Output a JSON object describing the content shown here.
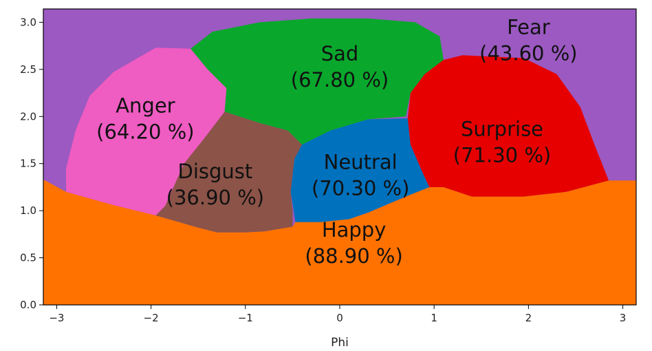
{
  "chart_data": {
    "type": "region-map",
    "title": "",
    "xlabel": "Phi",
    "ylabel": "",
    "xlim": [
      -3.14159,
      3.14159
    ],
    "ylim": [
      0,
      3.14159
    ],
    "xticks": [
      -3,
      -2,
      -1,
      0,
      1,
      2,
      3
    ],
    "xtick_labels": [
      "−3",
      "−2",
      "−1",
      "0",
      "1",
      "2",
      "3"
    ],
    "yticks": [
      0.0,
      0.5,
      1.0,
      1.5,
      2.0,
      2.5,
      3.0
    ],
    "ytick_labels": [
      "0.0",
      "0.5",
      "1.0",
      "1.5",
      "2.0",
      "2.5",
      "3.0"
    ],
    "regions": [
      {
        "name": "Fear",
        "percent_text": "(43.60 %)",
        "color": "#9b59c1",
        "label_at": [
          2.0,
          2.83
        ],
        "polygon": [
          [
            -3.14,
            0
          ],
          [
            3.14,
            0
          ],
          [
            3.14,
            3.14
          ],
          [
            -3.14,
            3.14
          ]
        ]
      },
      {
        "name": "Happy",
        "percent_text": "(88.90 %)",
        "color": "#ff7200",
        "label_at": [
          0.15,
          0.68
        ],
        "polygon": [
          [
            -3.14,
            0
          ],
          [
            3.14,
            0
          ],
          [
            3.14,
            1.32
          ],
          [
            2.85,
            1.32
          ],
          [
            2.4,
            1.2
          ],
          [
            1.95,
            1.15
          ],
          [
            1.4,
            1.15
          ],
          [
            1.1,
            1.25
          ],
          [
            0.95,
            1.25
          ],
          [
            0.7,
            1.15
          ],
          [
            0.3,
            0.98
          ],
          [
            0.1,
            0.91
          ],
          [
            -0.2,
            0.88
          ],
          [
            -0.47,
            0.88
          ],
          [
            -0.5,
            0.83
          ],
          [
            -0.8,
            0.78
          ],
          [
            -1.0,
            0.77
          ],
          [
            -1.3,
            0.77
          ],
          [
            -1.5,
            0.82
          ],
          [
            -1.95,
            0.95
          ],
          [
            -2.4,
            1.06
          ],
          [
            -2.9,
            1.2
          ],
          [
            -3.14,
            1.33
          ]
        ]
      },
      {
        "name": "Anger",
        "percent_text": "(64.20 %)",
        "color": "#ef5cc2",
        "label_at": [
          -2.06,
          2.0
        ],
        "polygon": [
          [
            -2.9,
            1.2
          ],
          [
            -2.4,
            1.06
          ],
          [
            -1.95,
            0.95
          ],
          [
            -1.85,
            1.05
          ],
          [
            -1.65,
            1.5
          ],
          [
            -1.45,
            1.75
          ],
          [
            -1.22,
            2.05
          ],
          [
            -1.2,
            2.3
          ],
          [
            -1.4,
            2.5
          ],
          [
            -1.58,
            2.72
          ],
          [
            -1.95,
            2.73
          ],
          [
            -2.4,
            2.47
          ],
          [
            -2.65,
            2.22
          ],
          [
            -2.8,
            1.85
          ],
          [
            -2.9,
            1.45
          ]
        ]
      },
      {
        "name": "Sad",
        "percent_text": "(67.80 %)",
        "color": "#09a72c",
        "label_at": [
          0.0,
          2.55
        ],
        "polygon": [
          [
            -1.58,
            2.72
          ],
          [
            -1.4,
            2.5
          ],
          [
            -1.2,
            2.3
          ],
          [
            -1.22,
            2.05
          ],
          [
            -0.85,
            1.93
          ],
          [
            -0.55,
            1.85
          ],
          [
            -0.4,
            1.7
          ],
          [
            -0.1,
            1.85
          ],
          [
            0.3,
            1.97
          ],
          [
            0.7,
            2.0
          ],
          [
            0.75,
            2.25
          ],
          [
            0.9,
            2.45
          ],
          [
            1.1,
            2.6
          ],
          [
            1.06,
            2.85
          ],
          [
            0.8,
            3.0
          ],
          [
            0.3,
            3.04
          ],
          [
            -0.3,
            3.04
          ],
          [
            -0.85,
            3.0
          ],
          [
            -1.35,
            2.9
          ]
        ]
      },
      {
        "name": "Disgust",
        "percent_text": "(36.90 %)",
        "color": "#8c5348",
        "label_at": [
          -1.32,
          1.3
        ],
        "polygon": [
          [
            -1.95,
            0.95
          ],
          [
            -1.5,
            0.82
          ],
          [
            -1.3,
            0.77
          ],
          [
            -1.0,
            0.77
          ],
          [
            -0.8,
            0.78
          ],
          [
            -0.5,
            0.83
          ],
          [
            -0.5,
            1.0
          ],
          [
            -0.52,
            1.2
          ],
          [
            -0.48,
            1.55
          ],
          [
            -0.4,
            1.7
          ],
          [
            -0.55,
            1.85
          ],
          [
            -0.85,
            1.93
          ],
          [
            -1.22,
            2.05
          ],
          [
            -1.45,
            1.75
          ],
          [
            -1.65,
            1.5
          ],
          [
            -1.85,
            1.05
          ]
        ]
      },
      {
        "name": "Neutral",
        "percent_text": "(70.30 %)",
        "color": "#0071bd",
        "label_at": [
          0.22,
          1.4
        ],
        "polygon": [
          [
            -0.47,
            0.88
          ],
          [
            -0.2,
            0.88
          ],
          [
            0.1,
            0.91
          ],
          [
            0.3,
            0.98
          ],
          [
            0.7,
            1.15
          ],
          [
            0.95,
            1.25
          ],
          [
            0.88,
            1.4
          ],
          [
            0.75,
            1.7
          ],
          [
            0.72,
            1.98
          ],
          [
            0.3,
            1.97
          ],
          [
            -0.1,
            1.85
          ],
          [
            -0.4,
            1.7
          ],
          [
            -0.48,
            1.55
          ],
          [
            -0.52,
            1.2
          ]
        ]
      },
      {
        "name": "Surprise",
        "percent_text": "(71.30 %)",
        "color": "#e60000",
        "label_at": [
          1.72,
          1.75
        ],
        "polygon": [
          [
            0.95,
            1.25
          ],
          [
            1.1,
            1.25
          ],
          [
            1.4,
            1.15
          ],
          [
            1.95,
            1.15
          ],
          [
            2.4,
            1.2
          ],
          [
            2.85,
            1.32
          ],
          [
            2.7,
            1.7
          ],
          [
            2.55,
            2.1
          ],
          [
            2.3,
            2.45
          ],
          [
            1.95,
            2.62
          ],
          [
            1.3,
            2.65
          ],
          [
            1.1,
            2.6
          ],
          [
            0.9,
            2.45
          ],
          [
            0.75,
            2.25
          ],
          [
            0.72,
            1.98
          ],
          [
            0.75,
            1.7
          ],
          [
            0.88,
            1.4
          ]
        ]
      }
    ]
  }
}
